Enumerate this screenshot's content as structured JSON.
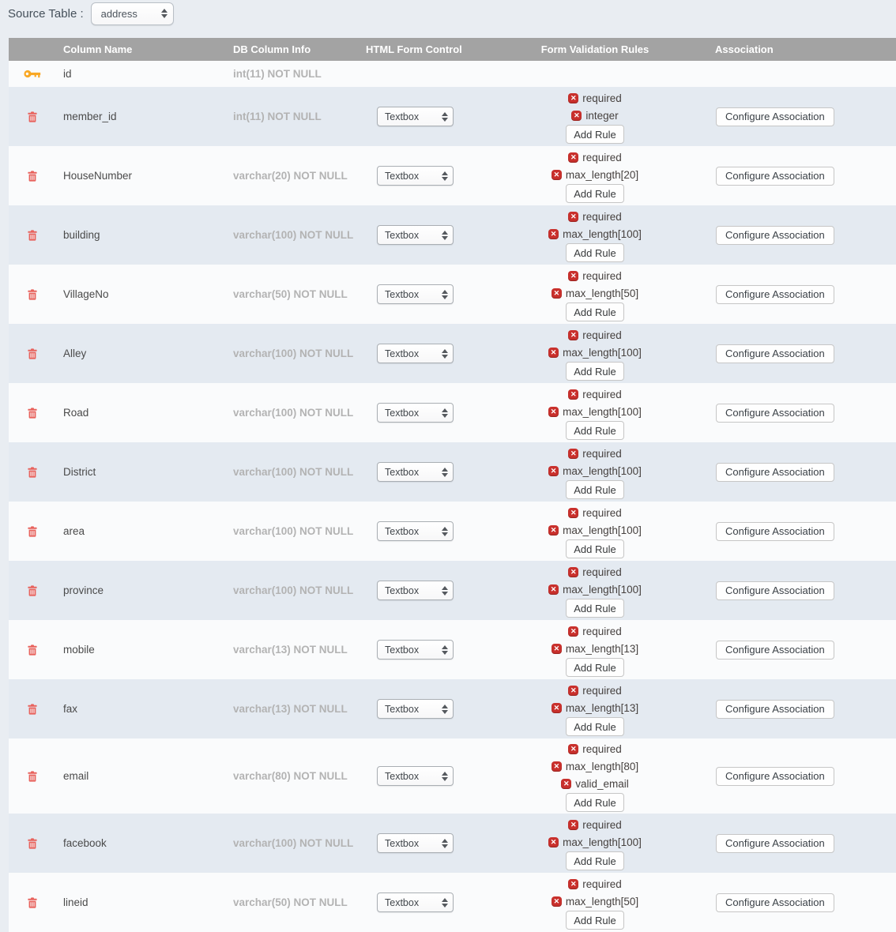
{
  "topbar": {
    "label": "Source Table :",
    "value": "address"
  },
  "table": {
    "headers": [
      "",
      "Column Name",
      "DB Column Info",
      "HTML Form Control",
      "Form Validation Rules",
      "Association"
    ],
    "rows": [
      {
        "key": true,
        "name": "id",
        "db": "int(11) NOT NULL",
        "control": null,
        "rules": []
      },
      {
        "key": false,
        "name": "member_id",
        "db": "int(11) NOT NULL",
        "control": "Textbox",
        "rules": [
          "required",
          "integer"
        ]
      },
      {
        "key": false,
        "name": "HouseNumber",
        "db": "varchar(20) NOT NULL",
        "control": "Textbox",
        "rules": [
          "required",
          "max_length[20]"
        ]
      },
      {
        "key": false,
        "name": "building",
        "db": "varchar(100) NOT NULL",
        "control": "Textbox",
        "rules": [
          "required",
          "max_length[100]"
        ]
      },
      {
        "key": false,
        "name": "VillageNo",
        "db": "varchar(50) NOT NULL",
        "control": "Textbox",
        "rules": [
          "required",
          "max_length[50]"
        ]
      },
      {
        "key": false,
        "name": "Alley",
        "db": "varchar(100) NOT NULL",
        "control": "Textbox",
        "rules": [
          "required",
          "max_length[100]"
        ]
      },
      {
        "key": false,
        "name": "Road",
        "db": "varchar(100) NOT NULL",
        "control": "Textbox",
        "rules": [
          "required",
          "max_length[100]"
        ]
      },
      {
        "key": false,
        "name": "District",
        "db": "varchar(100) NOT NULL",
        "control": "Textbox",
        "rules": [
          "required",
          "max_length[100]"
        ]
      },
      {
        "key": false,
        "name": "area",
        "db": "varchar(100) NOT NULL",
        "control": "Textbox",
        "rules": [
          "required",
          "max_length[100]"
        ]
      },
      {
        "key": false,
        "name": "province",
        "db": "varchar(100) NOT NULL",
        "control": "Textbox",
        "rules": [
          "required",
          "max_length[100]"
        ]
      },
      {
        "key": false,
        "name": "mobile",
        "db": "varchar(13) NOT NULL",
        "control": "Textbox",
        "rules": [
          "required",
          "max_length[13]"
        ]
      },
      {
        "key": false,
        "name": "fax",
        "db": "varchar(13) NOT NULL",
        "control": "Textbox",
        "rules": [
          "required",
          "max_length[13]"
        ]
      },
      {
        "key": false,
        "name": "email",
        "db": "varchar(80) NOT NULL",
        "control": "Textbox",
        "rules": [
          "required",
          "max_length[80]",
          "valid_email"
        ]
      },
      {
        "key": false,
        "name": "facebook",
        "db": "varchar(100) NOT NULL",
        "control": "Textbox",
        "rules": [
          "required",
          "max_length[100]"
        ]
      },
      {
        "key": false,
        "name": "lineid",
        "db": "varchar(50) NOT NULL",
        "control": "Textbox",
        "rules": [
          "required",
          "max_length[50]"
        ]
      }
    ]
  },
  "labels": {
    "add_rule": "Add Rule",
    "configure_association": "Configure Association"
  },
  "icons": {
    "rule_x_glyph": "✕",
    "key": "primary-key",
    "trash": "delete-column",
    "select_arrows": "up-down-arrows"
  },
  "colors": {
    "page_bg": "#e9edf2",
    "header_bg": "#a3a3a3",
    "stripe_light": "#fafbfc",
    "stripe_blue": "#e4eaf1",
    "trash_red": "#e8625c",
    "key_orange": "#f9a825",
    "rule_badge_red": "#c9302c"
  }
}
